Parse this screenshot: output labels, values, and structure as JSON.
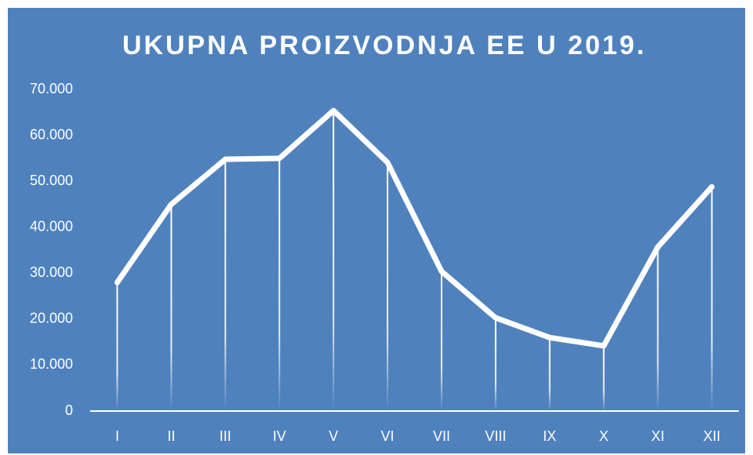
{
  "chart_data": {
    "type": "line",
    "title": "UKUPNA PROIZVODNJA EE U 2019.",
    "categories": [
      "I",
      "II",
      "III",
      "IV",
      "V",
      "VI",
      "VII",
      "VIII",
      "IX",
      "X",
      "XI",
      "XII"
    ],
    "series": [
      {
        "color": "#ffffff",
        "values": [
          28000,
          45000,
          54800,
          55000,
          65400,
          54100,
          30400,
          20300,
          16000,
          14200,
          35700,
          48800
        ]
      }
    ],
    "ylim": [
      0,
      70000
    ],
    "yticks": [
      0,
      {
        "value": 10000,
        "label": "10.000"
      },
      {
        "value": 20000,
        "label": "20.000"
      },
      {
        "value": 30000,
        "label": "30.000"
      },
      {
        "value": 40000,
        "label": "40.000"
      },
      {
        "value": 50000,
        "label": "50.000"
      },
      {
        "value": 60000,
        "label": "60.000"
      },
      {
        "value": 70000,
        "label": "70.000"
      }
    ],
    "drop_lines": true
  }
}
